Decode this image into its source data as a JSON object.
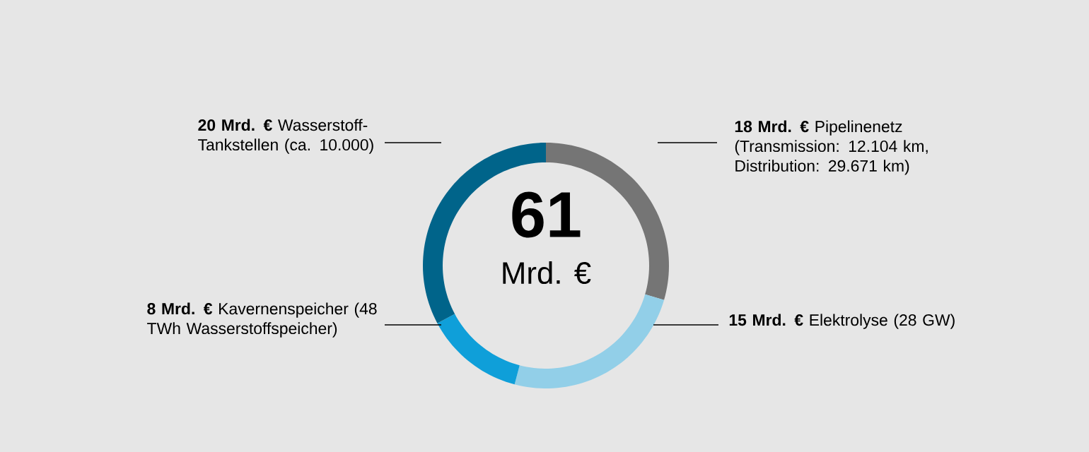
{
  "chart_data": {
    "type": "donut",
    "categories": [
      "**18 Mrd. €** Pipelinenetz (Transmission: 12.104 km, Distribution: 29.671 km)",
      "**15 Mrd. €** Elektrolyse (28 GW)",
      "**8 Mrd. €** Kavernenspeicher (48 TWh Wasserstoffspeicher)",
      "**20 Mrd. €** Wasserstoff-Tankstellen (ca. 10.000)"
    ],
    "values": [
      18,
      15,
      8,
      20
    ],
    "colors": [
      "#757575",
      "#92cfe8",
      "#0f9fd9",
      "#00648a"
    ],
    "annotations": [
      "61",
      "Mrd. €"
    ]
  }
}
